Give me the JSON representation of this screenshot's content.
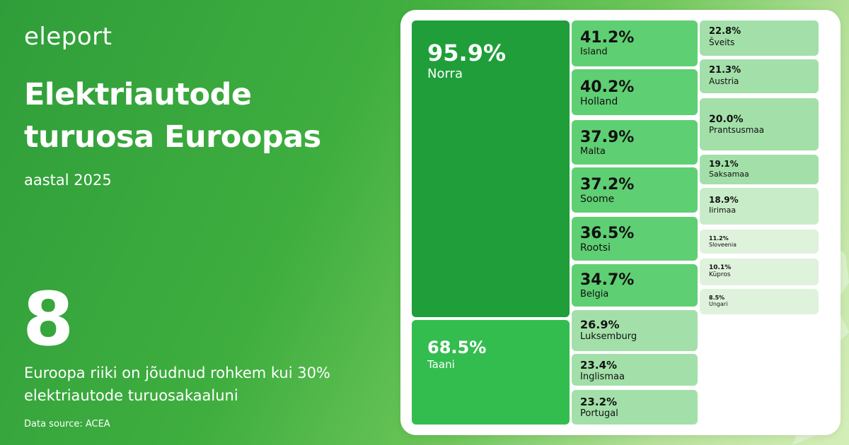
{
  "brand": {
    "logo": "eleport"
  },
  "header": {
    "title": "Elektriautode turuosa Euroopas",
    "subtitle": "aastal 2025"
  },
  "stat": {
    "number": "8",
    "description": "Euroopa riiki on jõudnud rohkem kui 30% elektriautode turuosakaaluni"
  },
  "source": "Data source: ACEA",
  "chart_data": {
    "type": "treemap",
    "unit": "%",
    "items": [
      {
        "value": "95.9%",
        "name": "Norra",
        "share": 95.9
      },
      {
        "value": "68.5%",
        "name": "Taani",
        "share": 68.5
      },
      {
        "value": "41.2%",
        "name": "Island",
        "share": 41.2
      },
      {
        "value": "40.2%",
        "name": "Holland",
        "share": 40.2
      },
      {
        "value": "37.9%",
        "name": "Malta",
        "share": 37.9
      },
      {
        "value": "37.2%",
        "name": "Soome",
        "share": 37.2
      },
      {
        "value": "36.5%",
        "name": "Rootsi",
        "share": 36.5
      },
      {
        "value": "34.7%",
        "name": "Belgia",
        "share": 34.7
      },
      {
        "value": "26.9%",
        "name": "Luksemburg",
        "share": 26.9
      },
      {
        "value": "23.4%",
        "name": "Inglismaa",
        "share": 23.4
      },
      {
        "value": "23.2%",
        "name": "Portugal",
        "share": 23.2
      },
      {
        "value": "22.8%",
        "name": "Šveits",
        "share": 22.8
      },
      {
        "value": "21.3%",
        "name": "Austria",
        "share": 21.3
      },
      {
        "value": "20.0%",
        "name": "Prantsusmaa",
        "share": 20.0
      },
      {
        "value": "19.1%",
        "name": "Saksamaa",
        "share": 19.1
      },
      {
        "value": "18.9%",
        "name": "Iirimaa",
        "share": 18.9
      },
      {
        "value": "11.2%",
        "name": "Sloveenia",
        "share": 11.2
      },
      {
        "value": "10.1%",
        "name": "Küpros",
        "share": 10.1
      },
      {
        "value": "8.5%",
        "name": "Ungari",
        "share": 8.5
      }
    ]
  }
}
